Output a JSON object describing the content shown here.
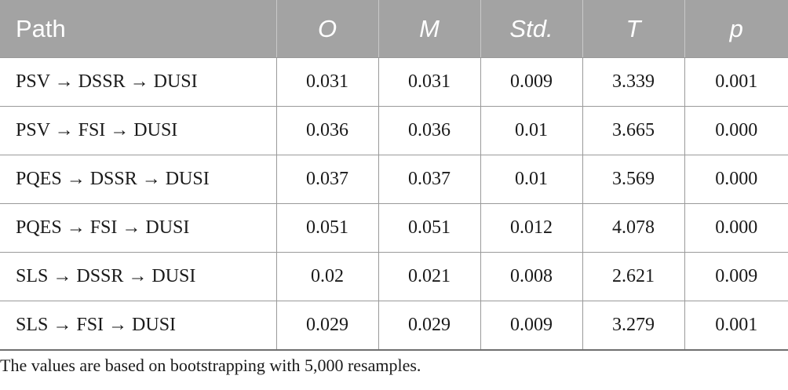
{
  "table": {
    "headers": [
      "Path",
      "O",
      "M",
      "Std.",
      "T",
      "p"
    ],
    "rows": [
      [
        "PSV → DSSR → DUSI",
        "0.031",
        "0.031",
        "0.009",
        "3.339",
        "0.001"
      ],
      [
        "PSV → FSI → DUSI",
        "0.036",
        "0.036",
        "0.01",
        "3.665",
        "0.000"
      ],
      [
        "PQES → DSSR → DUSI",
        "0.037",
        "0.037",
        "0.01",
        "3.569",
        "0.000"
      ],
      [
        "PQES → FSI → DUSI",
        "0.051",
        "0.051",
        "0.012",
        "4.078",
        "0.000"
      ],
      [
        "SLS → DSSR → DUSI",
        "0.02",
        "0.021",
        "0.008",
        "2.621",
        "0.009"
      ],
      [
        "SLS → FSI → DUSI",
        "0.029",
        "0.029",
        "0.009",
        "3.279",
        "0.001"
      ]
    ]
  },
  "footnote": "The values are based on bootstrapping with 5,000 resamples.",
  "colors": {
    "header_bg": "#a3a3a3",
    "header_text": "#ffffff",
    "rule": "#9a9a9a"
  }
}
